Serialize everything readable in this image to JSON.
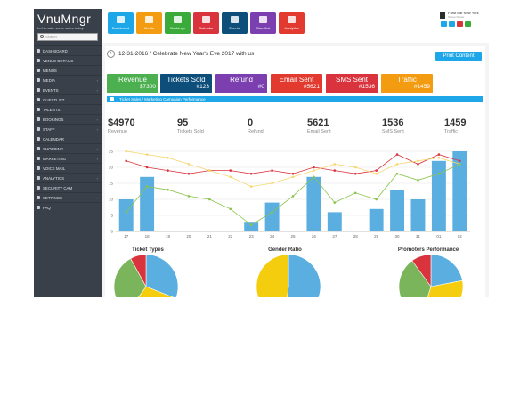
{
  "brand": {
    "name": "VnuMngr",
    "tagline": "Let's make some sales today."
  },
  "search": {
    "placeholder": "Search"
  },
  "sidebar": {
    "items": [
      {
        "label": "Dashboard",
        "caret": false
      },
      {
        "label": "Venue Details",
        "caret": false
      },
      {
        "label": "Menus",
        "caret": false
      },
      {
        "label": "Media",
        "caret": true
      },
      {
        "label": "Events",
        "caret": true
      },
      {
        "label": "Guestlist",
        "caret": false
      },
      {
        "label": "Talents",
        "caret": false
      },
      {
        "label": "Bookings",
        "caret": true
      },
      {
        "label": "Staff",
        "caret": true
      },
      {
        "label": "Calendar",
        "caret": false
      },
      {
        "label": "Shopping",
        "caret": true
      },
      {
        "label": "Marketing",
        "caret": true
      },
      {
        "label": "Voice Mail",
        "caret": false
      },
      {
        "label": "Analytics",
        "caret": true
      },
      {
        "label": "Security Cam",
        "caret": false
      },
      {
        "label": "Settings",
        "caret": true
      },
      {
        "label": "FAQ",
        "caret": false
      }
    ],
    "caret_glyph": "‹"
  },
  "toolbar": {
    "tiles": [
      {
        "label": "Dashboard",
        "color": "#1ea7e8",
        "icon": "dashboard-icon"
      },
      {
        "label": "Media",
        "color": "#f39c12",
        "icon": "media-icon"
      },
      {
        "label": "Bookings",
        "color": "#3aab3a",
        "icon": "bookings-icon"
      },
      {
        "label": "Calendar",
        "color": "#d9343e",
        "icon": "calendar-icon"
      },
      {
        "label": "Events",
        "color": "#0d4f7a",
        "icon": "events-icon"
      },
      {
        "label": "Guestlist",
        "color": "#7b3fb0",
        "icon": "guestlist-icon"
      },
      {
        "label": "Analytics",
        "color": "#e23a2f",
        "icon": "analytics-icon"
      }
    ]
  },
  "user": {
    "venue": "Frost Bar New York",
    "role": "Venue Owner",
    "buttons": [
      "#1ea7e8",
      "#1ea7e8",
      "#d9343e",
      "#3aab3a"
    ]
  },
  "page": {
    "back_glyph": "‹",
    "breadcrumb": "12-31-2016 / Celebrate New Year's Eve 2017 with us",
    "print_label": "Print Content"
  },
  "stats": [
    {
      "label": "Revenue",
      "value": "$7300",
      "color": "#4caf50"
    },
    {
      "label": "Tickets Sold",
      "value": "#123",
      "color": "#0d4f7a"
    },
    {
      "label": "Refund",
      "value": "#0",
      "color": "#7b3fb0"
    },
    {
      "label": "Email Sent",
      "value": "#5621",
      "color": "#e23a2f"
    },
    {
      "label": "SMS Sent",
      "value": "#1536",
      "color": "#d9343e"
    },
    {
      "label": "Traffic",
      "value": "#1459",
      "color": "#f39c12"
    }
  ],
  "section": {
    "title": "Ticket Sales / Marketing Campaign Performance"
  },
  "metrics": [
    {
      "value": "$4970",
      "label": "Revenue"
    },
    {
      "value": "95",
      "label": "Tickets Sold"
    },
    {
      "value": "0",
      "label": "Refund"
    },
    {
      "value": "5621",
      "label": "Email Sent"
    },
    {
      "value": "1536",
      "label": "SMS Sent"
    },
    {
      "value": "1459",
      "label": "Traffic"
    }
  ],
  "chart_data": [
    {
      "type": "bar",
      "categories": [
        "17",
        "18",
        "19",
        "20",
        "21",
        "22",
        "23",
        "24",
        "25",
        "26",
        "27",
        "28",
        "29",
        "30",
        "31",
        "01",
        "02"
      ],
      "ylim": [
        0,
        25
      ],
      "yticks": [
        0,
        5,
        10,
        15,
        20,
        25
      ],
      "grid": true,
      "series": [
        {
          "type": "bar",
          "color": "#5aaee0",
          "values": [
            10,
            17,
            0,
            0,
            0,
            0,
            3,
            9,
            0,
            17,
            6,
            0,
            7,
            13,
            10,
            22,
            25
          ]
        },
        {
          "type": "line",
          "color": "#d9343e",
          "values": [
            22,
            20,
            19,
            18,
            19,
            19,
            18,
            19,
            18,
            20,
            19,
            18,
            19,
            24,
            21,
            24,
            22
          ]
        },
        {
          "type": "line",
          "color": "#f5d76e",
          "values": [
            25,
            24,
            23,
            21,
            19,
            17,
            14,
            15,
            17,
            19,
            21,
            20,
            18,
            21,
            22,
            23,
            21
          ]
        },
        {
          "type": "line",
          "color": "#8bc34a",
          "values": [
            6,
            14,
            13,
            11,
            10,
            7,
            2,
            6,
            11,
            17,
            9,
            12,
            10,
            18,
            16,
            18,
            21
          ]
        }
      ]
    },
    {
      "type": "pie",
      "title": "Ticket Types",
      "slices": [
        {
          "value": 31,
          "color": "#5aaee0"
        },
        {
          "value": 29,
          "color": "#f5cd0f"
        },
        {
          "value": 32,
          "color": "#7ab55c"
        },
        {
          "value": 8,
          "color": "#d9343e"
        }
      ]
    },
    {
      "type": "pie",
      "title": "Gender Ratio",
      "slices": [
        {
          "value": 52,
          "color": "#5aaee0"
        },
        {
          "value": 48,
          "color": "#f5cd0f"
        }
      ]
    },
    {
      "type": "pie",
      "title": "Promoters Performance",
      "slices": [
        {
          "value": 22,
          "color": "#5aaee0"
        },
        {
          "value": 33,
          "color": "#f5cd0f"
        },
        {
          "value": 35,
          "color": "#7ab55c"
        },
        {
          "value": 10,
          "color": "#d9343e"
        }
      ]
    }
  ]
}
